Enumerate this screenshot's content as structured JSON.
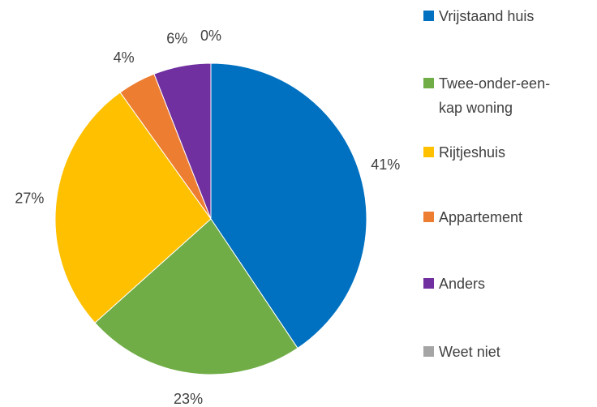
{
  "chart_data": {
    "type": "pie",
    "categories": [
      "Vrijstaand huis",
      "Twee-onder-een-kap woning",
      "Rijtjeshuis",
      "Appartement",
      "Anders",
      "Weet niet"
    ],
    "values": [
      41,
      23,
      27,
      4,
      6,
      0
    ],
    "value_labels": [
      "41%",
      "23%",
      "27%",
      "4%",
      "6%",
      "0%"
    ],
    "colors": [
      "#0070c0",
      "#70ad47",
      "#ffc000",
      "#ed7d31",
      "#7030a0",
      "#a5a5a5"
    ],
    "legend": "right"
  }
}
